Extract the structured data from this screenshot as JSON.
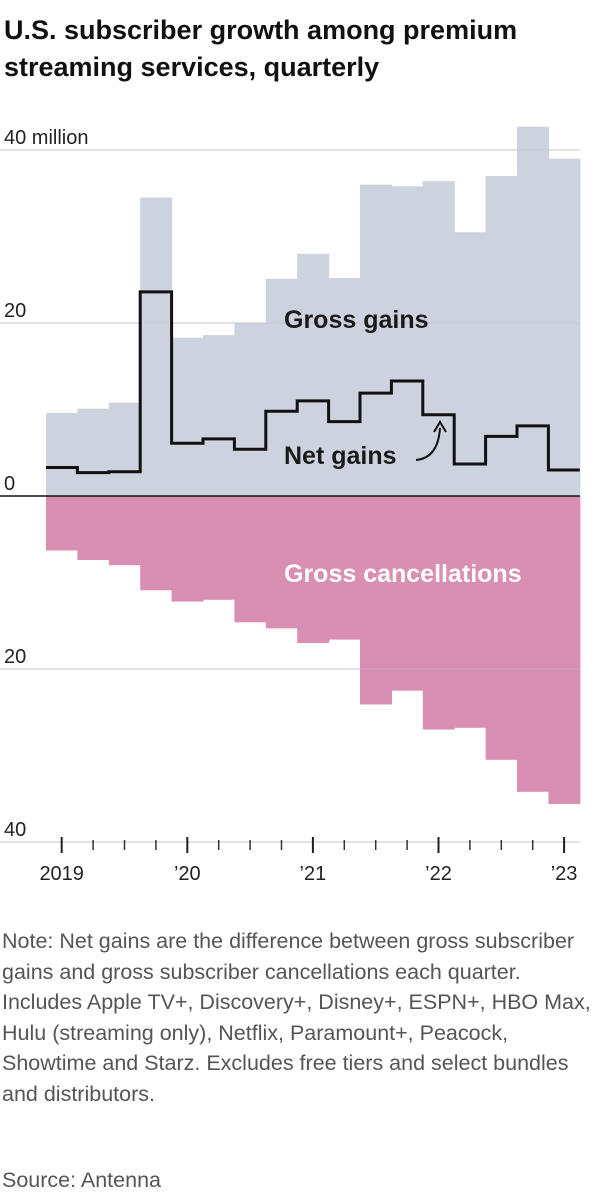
{
  "title": "U.S. subscriber growth among premium streaming services, quarterly",
  "note": "Note: Net gains are the difference between gross subscriber gains and gross subscriber cancellations each quarter. Includes Apple TV+, Discovery+, Disney+, ESPN+, HBO Max, Hulu (streaming only), Netflix, Paramount+, Peacock, Showtime and Starz. Excludes free tiers and select bundles and distributors.",
  "source": "Source: Antenna",
  "colors": {
    "gains": "#cdd3de",
    "cancellations": "#d98fb2",
    "net_line": "#111111",
    "grid": "#c9c9c9",
    "cancel_label": "#ffffff",
    "gains_label": "#1a1a1a"
  },
  "chart_data": {
    "type": "bar",
    "categories": [
      "Q1 2019",
      "Q2 2019",
      "Q3 2019",
      "Q4 2019",
      "Q1 2020",
      "Q2 2020",
      "Q3 2020",
      "Q4 2020",
      "Q1 2021",
      "Q2 2021",
      "Q3 2021",
      "Q4 2021",
      "Q1 2022",
      "Q2 2022",
      "Q3 2022",
      "Q4 2022",
      "Q1 2023"
    ],
    "series": [
      {
        "name": "Gross gains",
        "values": [
          9.6,
          10.1,
          10.8,
          34.5,
          18.3,
          18.6,
          20.0,
          25.1,
          28.0,
          25.2,
          36.0,
          35.8,
          36.4,
          30.5,
          37.0,
          42.7,
          39.0
        ]
      },
      {
        "name": "Gross cancellations",
        "values": [
          -6.3,
          -7.4,
          -8.0,
          -10.9,
          -12.2,
          -12.0,
          -14.6,
          -15.3,
          -17.0,
          -16.6,
          -24.1,
          -22.5,
          -27.0,
          -26.8,
          -30.5,
          -34.2,
          -35.6
        ]
      },
      {
        "name": "Net gains",
        "values": [
          3.3,
          2.7,
          2.8,
          23.6,
          6.1,
          6.6,
          5.4,
          9.8,
          11.0,
          8.6,
          11.9,
          13.3,
          9.4,
          3.7,
          6.9,
          8.1,
          3.0
        ]
      }
    ],
    "y_tick_labels": [
      "40 million",
      "20",
      "0",
      "20",
      "40"
    ],
    "y_tick_values": [
      40,
      20,
      0,
      -20,
      -40
    ],
    "x_tick_labels": [
      "2019",
      "’20",
      "’21",
      "’22",
      "’23"
    ],
    "x_tick_years": [
      2019,
      2020,
      2021,
      2022,
      2023
    ],
    "annotations": {
      "gains": "Gross gains",
      "net": "Net gains",
      "cancellations": "Gross cancellations"
    },
    "ylim": [
      -40,
      42.7
    ],
    "grid": true,
    "legend": "none"
  }
}
